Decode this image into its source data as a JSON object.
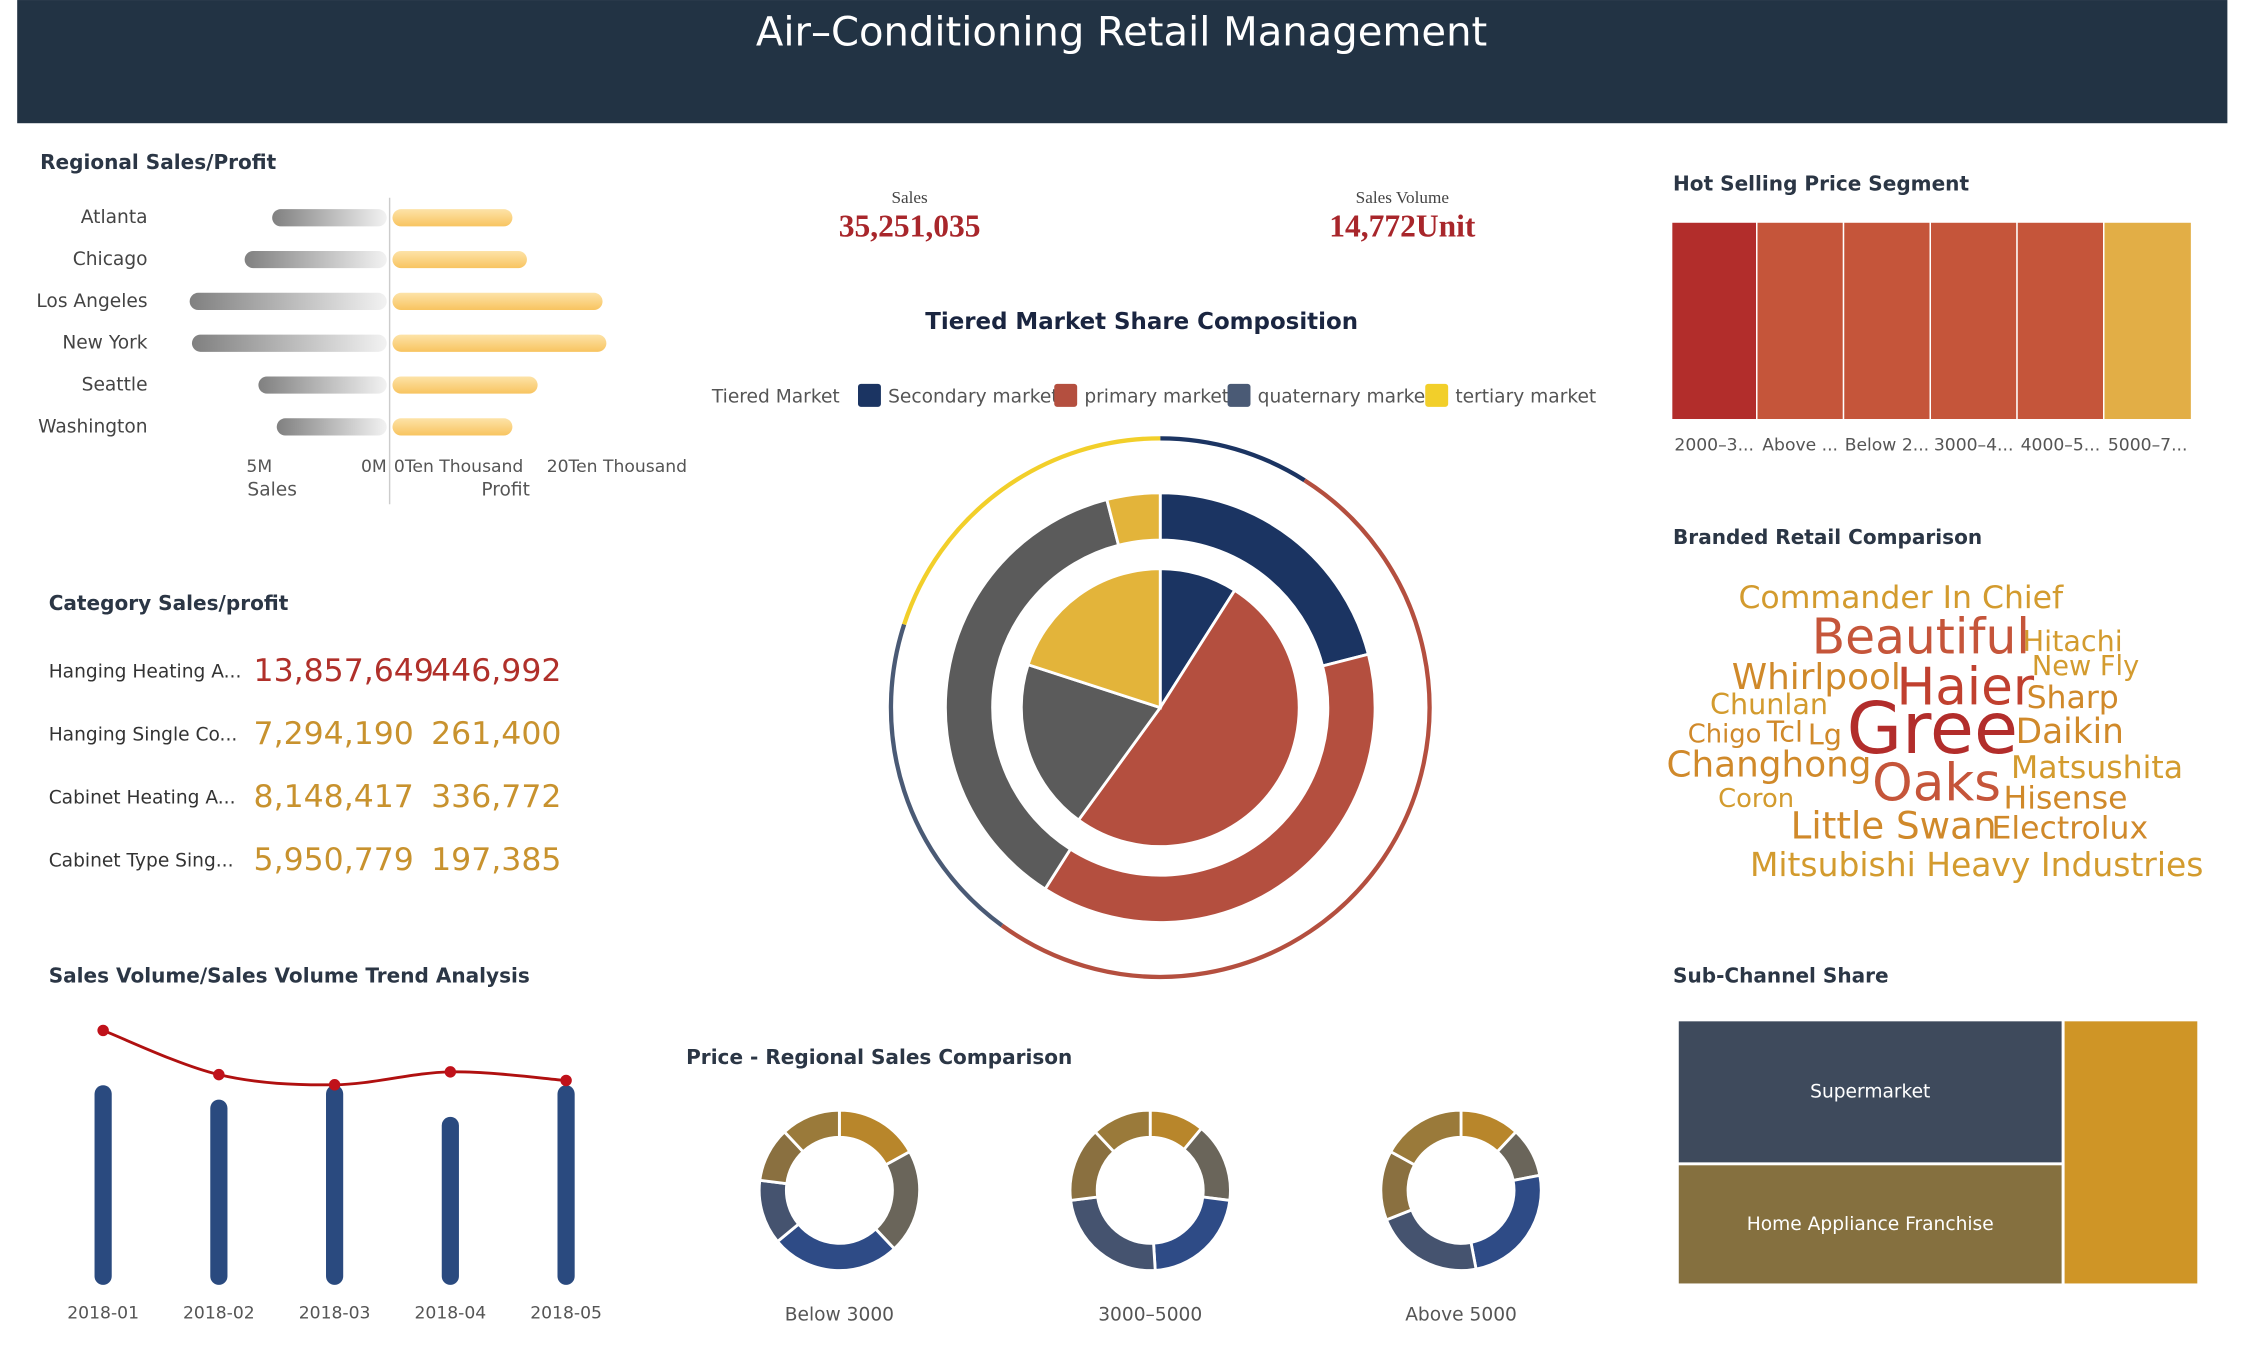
{
  "header": {
    "title": "Air–Conditioning Retail Management"
  },
  "kpis": [
    {
      "label": "Sales",
      "value": "35,251,035"
    },
    {
      "label": "Sales Volume",
      "value": "14,772Unit"
    }
  ],
  "category_table": {
    "title": "Category Sales/profit",
    "rows": [
      [
        "Hanging Heating A...",
        "13,857,649",
        "446,992"
      ],
      [
        "Hanging Single Co...",
        "7,294,190",
        "261,400"
      ],
      [
        "Cabinet Heating A...",
        "8,148,417",
        "336,772"
      ],
      [
        "Cabinet Type Sing...",
        "5,950,779",
        "197,385"
      ]
    ]
  },
  "word_cloud": {
    "title": "Branded Retail Comparison",
    "words": [
      {
        "text": "Commander In Chief",
        "value": 22,
        "color": "#d39b2e"
      },
      {
        "text": "Beautiful",
        "value": 34,
        "color": "#c5553a"
      },
      {
        "text": "Hitachi",
        "value": 20,
        "color": "#d39b2e"
      },
      {
        "text": "Whirlpool",
        "value": 25,
        "color": "#d0892a"
      },
      {
        "text": "Haier",
        "value": 36,
        "color": "#c0402f"
      },
      {
        "text": "New Fly",
        "value": 19,
        "color": "#d39b2e"
      },
      {
        "text": "Chunlan",
        "value": 20,
        "color": "#d39b2e"
      },
      {
        "text": "Sharp",
        "value": 22,
        "color": "#d0892a"
      },
      {
        "text": "Gree",
        "value": 50,
        "color": "#b22d2b"
      },
      {
        "text": "Chigo",
        "value": 18,
        "color": "#d0892a"
      },
      {
        "text": "Tcl",
        "value": 20,
        "color": "#d0892a"
      },
      {
        "text": "Lg",
        "value": 20,
        "color": "#d0892a"
      },
      {
        "text": "Daikin",
        "value": 24,
        "color": "#d0892a"
      },
      {
        "text": "Changhong",
        "value": 25,
        "color": "#d0892a"
      },
      {
        "text": "Matsushita",
        "value": 22,
        "color": "#d39b2e"
      },
      {
        "text": "Oaks",
        "value": 36,
        "color": "#c5553a"
      },
      {
        "text": "Coron",
        "value": 18,
        "color": "#d39b2e"
      },
      {
        "text": "Hisense",
        "value": 22,
        "color": "#d0892a"
      },
      {
        "text": "Little Swan",
        "value": 26,
        "color": "#d0892a"
      },
      {
        "text": "Electrolux",
        "value": 22,
        "color": "#d0892a"
      },
      {
        "text": "Mitsubishi Heavy Industries",
        "value": 23,
        "color": "#d39b2e"
      }
    ]
  },
  "chart_data": [
    {
      "type": "butterfly",
      "title": "Regional Sales/Profit",
      "categories": [
        "Atlanta",
        "Chicago",
        "Los Angeles",
        "New York",
        "Seattle",
        "Washington"
      ],
      "series": [
        {
          "name": "Sales",
          "color": "#888888",
          "values": [
            5000000,
            6200000,
            8600000,
            8500000,
            5600000,
            4800000
          ],
          "xlim": [
            0,
            10000000
          ],
          "xticks": [
            {
              "value": 5000000,
              "label": "5M"
            },
            {
              "value": 0,
              "label": "0M"
            }
          ]
        },
        {
          "name": "Profit",
          "color": "#fcd27a",
          "values": [
            15.7,
            17.6,
            27.5,
            28,
            19,
            15.7
          ],
          "xlim": [
            0,
            30
          ],
          "xticks": [
            {
              "value": 0,
              "label": "0Ten Thousand"
            },
            {
              "value": 20,
              "label": "20Ten Thousand"
            }
          ]
        }
      ]
    },
    {
      "type": "rings",
      "title": "Tiered Market Share Composition",
      "legend_title": "Tiered Market",
      "series": [
        {
          "name": "Secondary market",
          "color": "#1b3462",
          "values": [
            9,
            21,
            9
          ]
        },
        {
          "name": "primary market",
          "color": "#b44f3f",
          "values": [
            51,
            38,
            51
          ]
        },
        {
          "name": "quaternary market",
          "color": "#4a5a75",
          "values": [
            20,
            37,
            20
          ]
        },
        {
          "name": "tertiary market",
          "color": "#f2cf2a",
          "values": [
            20,
            4,
            20
          ]
        }
      ],
      "ring_colors": [
        null,
        {
          "quaternary market": "#5b5b5b",
          "tertiary market": "#e3b43a"
        },
        {
          "quaternary market": "#5b5b5b",
          "tertiary market": "#e3b43a"
        }
      ]
    },
    {
      "type": "strips",
      "title": "Hot Selling Price Segment",
      "categories": [
        "2000–3...",
        "Above ...",
        "Below 2...",
        "3000–4...",
        "4000–5...",
        "5000–7..."
      ],
      "values": [
        16.3,
        16.6,
        16.6,
        16.6,
        16.6,
        16.8
      ],
      "colors": [
        "#b22d2b",
        "#c5553a",
        "#c5553a",
        "#c5553a",
        "#c5553a",
        "#e2ae46"
      ]
    },
    {
      "type": "combo",
      "title": "Sales Volume/Sales Volume Trend Analysis",
      "categories": [
        "2018-01",
        "2018-02",
        "2018-03",
        "2018-04",
        "2018-05"
      ],
      "ylim": [
        0,
        4000
      ],
      "y2lim": [
        0,
        8400000
      ],
      "series": [
        {
          "type": "bar",
          "color": "#2a4a7f",
          "values": [
            3097,
            2874,
            3097,
            2607,
            3097
          ]
        },
        {
          "type": "line",
          "color": "#b01010",
          "axis": "y2",
          "values": [
            8290000,
            6850000,
            6520000,
            6940000,
            6660000
          ]
        }
      ]
    },
    {
      "type": "donuts",
      "title": "Price - Regional Sales Comparison",
      "categories": [
        "Below 3000",
        "3000–5000",
        "Above 5000"
      ],
      "series": [
        {
          "color": "#b8862b",
          "values": [
            17,
            11,
            12
          ]
        },
        {
          "color": "#6a655a",
          "values": [
            21,
            16,
            10
          ]
        },
        {
          "color": "#2e4b86",
          "values": [
            26,
            22,
            25
          ]
        },
        {
          "color": "#45536f",
          "values": [
            13,
            24,
            22
          ]
        },
        {
          "color": "#8a7040",
          "values": [
            11,
            15,
            14
          ]
        },
        {
          "color": "#9a7a3a",
          "values": [
            12,
            12,
            17
          ]
        }
      ]
    },
    {
      "type": "treemap",
      "title": "Sub-Channel Share",
      "categories": [
        "Supermarket",
        "Home Appliance Franchise",
        null
      ],
      "values": [
        40.2,
        33.8,
        26.0
      ],
      "colors": [
        "#3e4a5c",
        "#85703f",
        "#cf9526"
      ]
    }
  ]
}
